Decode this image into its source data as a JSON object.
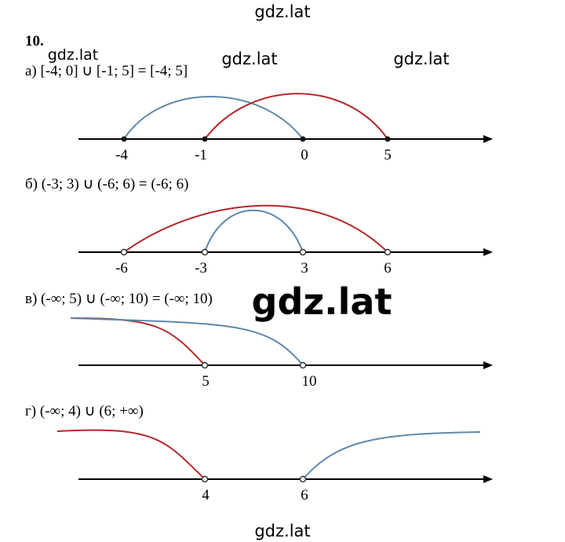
{
  "watermarks": [
    "gdz.lat",
    "gdz.lat",
    "gdz.lat",
    "gdz.lat",
    "gdz.lat",
    "gdz.lat"
  ],
  "number": "10.",
  "parts": [
    {
      "label": "а) [-4; 0] ∪ [-1; 5] = [-4; 5]",
      "ticks": [
        "-4",
        "-1",
        "0",
        "5"
      ]
    },
    {
      "label": "б) (-3; 3) ∪ (-6; 6) = (-6; 6)",
      "ticks": [
        "-6",
        "-3",
        "3",
        "6"
      ]
    },
    {
      "label": "в) (-∞; 5) ∪ (-∞; 10) = (-∞; 10)",
      "ticks": [
        "5",
        "10"
      ]
    },
    {
      "label": "г) (-∞; 4) ∪ (6; +∞)",
      "ticks": [
        "4",
        "6"
      ]
    }
  ]
}
